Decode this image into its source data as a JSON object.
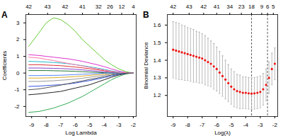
{
  "chart_data": [
    {
      "type": "line",
      "title": "A",
      "x_label": "Log Lambda",
      "y_label": "Coefficients",
      "xlim": [
        -9.4,
        -1.8
      ],
      "xticks": [
        -9,
        -8,
        -7,
        -6,
        -5,
        -4,
        -3,
        -2
      ],
      "ylim": [
        -2.6,
        3.5
      ],
      "yticks": [
        -2,
        -1,
        0,
        1,
        2,
        3
      ],
      "x2lim": [
        -9.4,
        -1.8
      ],
      "x2ticks": [
        {
          "value": -9.2,
          "label": "42"
        },
        {
          "value": -7.9,
          "label": "43"
        },
        {
          "value": -6.7,
          "label": "42"
        },
        {
          "value": -5.5,
          "label": "41"
        },
        {
          "value": -4.4,
          "label": "32"
        },
        {
          "value": -3.6,
          "label": "26"
        },
        {
          "value": -2.8,
          "label": "12"
        },
        {
          "value": -2.0,
          "label": "4"
        }
      ],
      "x": [
        -9.2,
        -8.5,
        -8,
        -7.5,
        -7,
        -6.5,
        -6,
        -5.5,
        -5,
        -4.5,
        -4,
        -3.5,
        -3,
        -2.5,
        -2
      ],
      "series": [
        {
          "color": "#66cc33",
          "values": [
            1.6,
            2.4,
            3.0,
            3.3,
            3.2,
            2.9,
            2.5,
            2.0,
            1.6,
            1.2,
            0.8,
            0.5,
            0.25,
            0.08,
            0
          ]
        },
        {
          "color": "#33aa55",
          "values": [
            -2.35,
            -2.3,
            -2.2,
            -2.1,
            -1.95,
            -1.8,
            -1.6,
            -1.4,
            -1.15,
            -0.9,
            -0.65,
            -0.4,
            -0.2,
            -0.05,
            0
          ]
        },
        {
          "color": "#dd33cc",
          "values": [
            1.1,
            1.05,
            1.0,
            0.95,
            0.9,
            0.85,
            0.78,
            0.7,
            0.6,
            0.5,
            0.38,
            0.25,
            0.12,
            0.03,
            0
          ]
        },
        {
          "color": "#222222",
          "values": [
            -1.3,
            -1.25,
            -1.2,
            -1.15,
            -1.1,
            -1.0,
            -0.9,
            -0.8,
            -0.7,
            -0.55,
            -0.4,
            -0.25,
            -0.12,
            -0.03,
            0
          ]
        },
        {
          "color": "#3355dd",
          "values": [
            -0.8,
            -0.78,
            -0.75,
            -0.72,
            -0.7,
            -0.65,
            -0.6,
            -0.52,
            -0.45,
            -0.36,
            -0.27,
            -0.17,
            -0.08,
            -0.02,
            0
          ]
        },
        {
          "color": "#22bbcc",
          "values": [
            0.7,
            0.68,
            0.66,
            0.63,
            0.6,
            0.56,
            0.5,
            0.44,
            0.37,
            0.3,
            0.22,
            0.13,
            0.06,
            0.01,
            0
          ]
        },
        {
          "color": "#dd3333",
          "values": [
            0.5,
            0.5,
            0.48,
            0.46,
            0.44,
            0.4,
            0.36,
            0.31,
            0.26,
            0.2,
            0.14,
            0.08,
            0.03,
            0,
            0
          ]
        },
        {
          "color": "#999999",
          "values": [
            -0.5,
            -0.5,
            -0.48,
            -0.46,
            -0.43,
            -0.4,
            -0.36,
            -0.31,
            -0.25,
            -0.19,
            -0.13,
            -0.07,
            -0.03,
            0,
            0
          ]
        },
        {
          "color": "#8844cc",
          "values": [
            0.3,
            0.3,
            0.29,
            0.28,
            0.27,
            0.25,
            0.22,
            0.19,
            0.15,
            0.11,
            0.07,
            0.03,
            0,
            0,
            0
          ]
        },
        {
          "color": "#ddaa22",
          "values": [
            -0.3,
            -0.3,
            -0.29,
            -0.28,
            -0.26,
            -0.24,
            -0.21,
            -0.18,
            -0.14,
            -0.1,
            -0.06,
            -0.02,
            0,
            0,
            0
          ]
        },
        {
          "color": "#227733",
          "values": [
            0.15,
            0.15,
            0.15,
            0.14,
            0.13,
            0.12,
            0.1,
            0.08,
            0.06,
            0.04,
            0.02,
            0,
            0,
            0,
            0
          ]
        },
        {
          "color": "#5588ff",
          "values": [
            -0.15,
            -0.15,
            -0.14,
            -0.14,
            -0.13,
            -0.11,
            -0.09,
            -0.07,
            -0.05,
            -0.03,
            -0.01,
            0,
            0,
            0,
            0
          ]
        },
        {
          "color": "#ff77aa",
          "values": [
            0.95,
            0.9,
            0.82,
            0.75,
            0.66,
            0.58,
            0.5,
            0.42,
            0.34,
            0.26,
            0.18,
            0.1,
            0.04,
            0.01,
            0
          ]
        },
        {
          "color": "#555555",
          "values": [
            -1.0,
            -0.95,
            -0.88,
            -0.8,
            -0.72,
            -0.64,
            -0.55,
            -0.47,
            -0.38,
            -0.3,
            -0.21,
            -0.12,
            -0.05,
            -0.01,
            0
          ]
        }
      ]
    },
    {
      "type": "scatter",
      "title": "B",
      "x_label": "Log(λ)",
      "y_label": "Binomial Deviance",
      "xlim": [
        -9.4,
        -1.8
      ],
      "xticks": [
        -9,
        -8,
        -7,
        -6,
        -5,
        -4,
        -3,
        -2
      ],
      "ylim": [
        1.08,
        1.66
      ],
      "yticks": [
        1.2,
        1.3,
        1.4,
        1.5,
        1.6
      ],
      "x2lim": [
        -9.4,
        -1.8
      ],
      "x2ticks": [
        {
          "value": -9.0,
          "label": "42"
        },
        {
          "value": -7.9,
          "label": "43"
        },
        {
          "value": -6.9,
          "label": "42"
        },
        {
          "value": -6.0,
          "label": "41"
        },
        {
          "value": -5.1,
          "label": "34"
        },
        {
          "value": -4.3,
          "label": "23"
        },
        {
          "value": -3.6,
          "label": "18"
        },
        {
          "value": -2.9,
          "label": "9"
        },
        {
          "value": -2.5,
          "label": "6"
        },
        {
          "value": -2.1,
          "label": "5"
        }
      ],
      "vlines": [
        -3.6,
        -2.5
      ],
      "x": [
        -9.0,
        -8.8,
        -8.6,
        -8.4,
        -8.2,
        -8.0,
        -7.8,
        -7.6,
        -7.4,
        -7.2,
        -7.0,
        -6.8,
        -6.6,
        -6.4,
        -6.2,
        -6.0,
        -5.8,
        -5.6,
        -5.4,
        -5.2,
        -5.0,
        -4.8,
        -4.6,
        -4.4,
        -4.2,
        -4.0,
        -3.8,
        -3.6,
        -3.4,
        -3.2,
        -3.0,
        -2.8,
        -2.6,
        -2.4,
        -2.2,
        -2.0
      ],
      "series": [
        {
          "color": "#ee1111",
          "marker": "circle",
          "values": [
            1.46,
            1.455,
            1.45,
            1.445,
            1.44,
            1.435,
            1.43,
            1.425,
            1.42,
            1.415,
            1.41,
            1.4,
            1.39,
            1.38,
            1.365,
            1.35,
            1.33,
            1.31,
            1.29,
            1.27,
            1.25,
            1.235,
            1.225,
            1.22,
            1.215,
            1.215,
            1.212,
            1.21,
            1.212,
            1.215,
            1.22,
            1.235,
            1.26,
            1.3,
            1.35,
            1.38
          ],
          "error": [
            0.16,
            0.16,
            0.16,
            0.155,
            0.155,
            0.15,
            0.15,
            0.15,
            0.145,
            0.145,
            0.14,
            0.14,
            0.135,
            0.13,
            0.13,
            0.125,
            0.12,
            0.115,
            0.11,
            0.105,
            0.1,
            0.1,
            0.095,
            0.095,
            0.09,
            0.09,
            0.09,
            0.09,
            0.09,
            0.09,
            0.09,
            0.09,
            0.09,
            0.09,
            0.09,
            0.09
          ]
        }
      ]
    }
  ]
}
